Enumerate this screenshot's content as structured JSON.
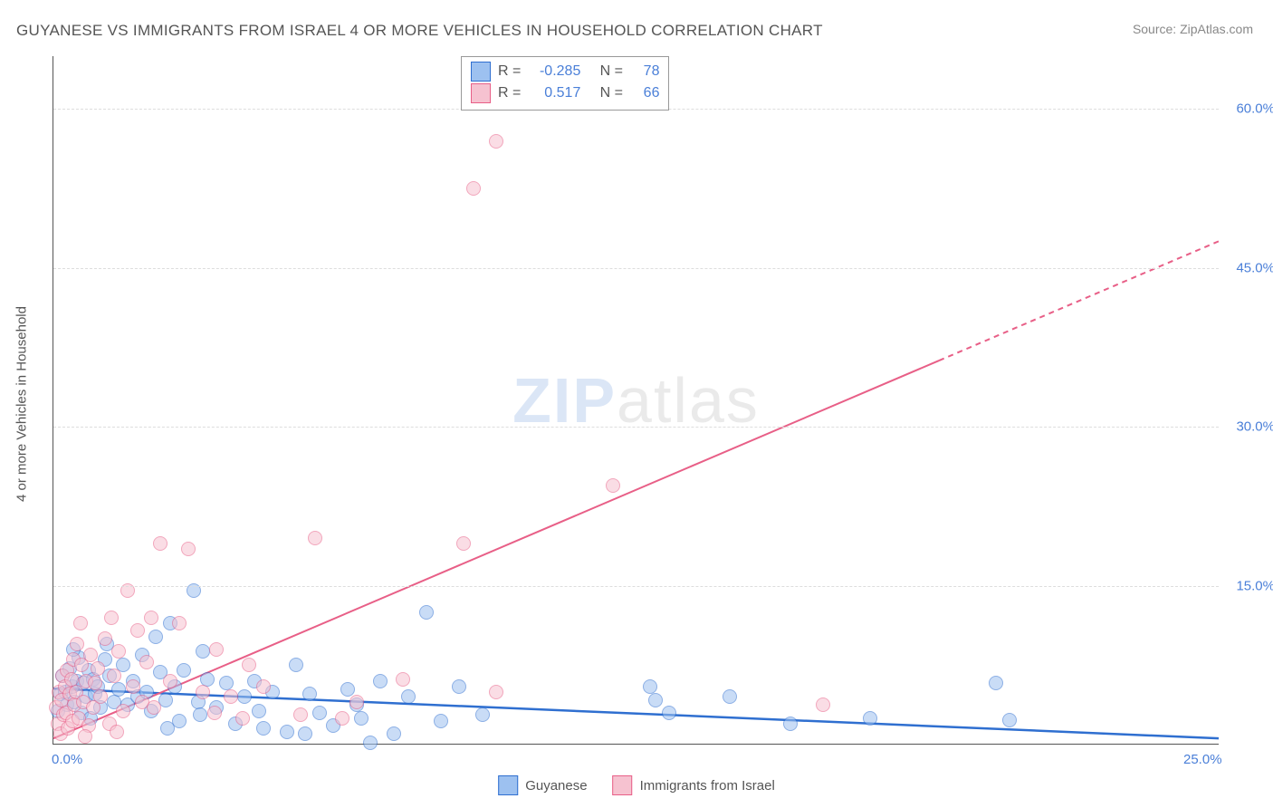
{
  "title": "GUYANESE VS IMMIGRANTS FROM ISRAEL 4 OR MORE VEHICLES IN HOUSEHOLD CORRELATION CHART",
  "source": "Source: ZipAtlas.com",
  "watermark_zip": "ZIP",
  "watermark_atlas": "atlas",
  "y_axis_title": "4 or more Vehicles in Household",
  "chart": {
    "type": "scatter",
    "xlim": [
      0,
      25
    ],
    "ylim": [
      0,
      65
    ],
    "x_ticks": [
      {
        "v": 0,
        "label": "0.0%"
      },
      {
        "v": 25,
        "label": "25.0%"
      }
    ],
    "y_ticks": [
      {
        "v": 15,
        "label": "15.0%"
      },
      {
        "v": 30,
        "label": "30.0%"
      },
      {
        "v": 45,
        "label": "45.0%"
      },
      {
        "v": 60,
        "label": "60.0%"
      }
    ],
    "grid_color": "#dddddd",
    "axis_color": "#555555",
    "marker_radius": 8,
    "marker_opacity": 0.55,
    "colors": {
      "blue_fill": "#9dc1f0",
      "blue_stroke": "#2f6fd0",
      "pink_fill": "#f6c2d0",
      "pink_stroke": "#e85f87"
    },
    "series": [
      {
        "name": "Guyanese",
        "color_key": "blue",
        "R": "-0.285",
        "N": "78",
        "trend": {
          "x1": 0,
          "y1": 5.2,
          "x2": 25,
          "y2": 0.5,
          "stroke": "#2f6fd0",
          "width": 2.5,
          "dash_after_x": 25
        },
        "points": [
          [
            0.1,
            3.2
          ],
          [
            0.15,
            4.8
          ],
          [
            0.2,
            6.5
          ],
          [
            0.25,
            5.0
          ],
          [
            0.3,
            3.8
          ],
          [
            0.35,
            7.2
          ],
          [
            0.4,
            5.5
          ],
          [
            0.45,
            4.0
          ],
          [
            0.5,
            6.0
          ],
          [
            0.55,
            8.2
          ],
          [
            0.6,
            3.0
          ],
          [
            0.65,
            5.8
          ],
          [
            0.7,
            4.5
          ],
          [
            0.75,
            7.0
          ],
          [
            0.8,
            2.5
          ],
          [
            0.85,
            6.2
          ],
          [
            0.9,
            4.8
          ],
          [
            0.95,
            5.5
          ],
          [
            1.0,
            3.5
          ],
          [
            1.1,
            8.0
          ],
          [
            1.2,
            6.5
          ],
          [
            1.3,
            4.0
          ],
          [
            1.4,
            5.2
          ],
          [
            1.5,
            7.5
          ],
          [
            1.6,
            3.8
          ],
          [
            1.7,
            6.0
          ],
          [
            1.8,
            4.5
          ],
          [
            1.9,
            8.5
          ],
          [
            2.0,
            5.0
          ],
          [
            2.1,
            3.2
          ],
          [
            2.2,
            10.2
          ],
          [
            2.3,
            6.8
          ],
          [
            2.4,
            4.2
          ],
          [
            2.5,
            11.5
          ],
          [
            2.6,
            5.5
          ],
          [
            2.8,
            7.0
          ],
          [
            3.0,
            14.5
          ],
          [
            3.1,
            4.0
          ],
          [
            3.3,
            6.2
          ],
          [
            3.5,
            3.5
          ],
          [
            3.7,
            5.8
          ],
          [
            3.9,
            2.0
          ],
          [
            4.1,
            4.5
          ],
          [
            4.3,
            6.0
          ],
          [
            4.5,
            1.5
          ],
          [
            4.7,
            5.0
          ],
          [
            5.0,
            1.2
          ],
          [
            5.2,
            7.5
          ],
          [
            5.5,
            4.8
          ],
          [
            5.7,
            3.0
          ],
          [
            6.0,
            1.8
          ],
          [
            6.3,
            5.2
          ],
          [
            6.6,
            2.5
          ],
          [
            7.0,
            6.0
          ],
          [
            7.3,
            1.0
          ],
          [
            7.6,
            4.5
          ],
          [
            8.0,
            12.5
          ],
          [
            8.3,
            2.2
          ],
          [
            8.7,
            5.5
          ],
          [
            9.2,
            2.8
          ],
          [
            12.8,
            5.5
          ],
          [
            12.9,
            4.2
          ],
          [
            13.2,
            3.0
          ],
          [
            14.5,
            4.5
          ],
          [
            15.8,
            2.0
          ],
          [
            17.5,
            2.5
          ],
          [
            20.2,
            5.8
          ],
          [
            20.5,
            2.3
          ],
          [
            6.5,
            3.8
          ],
          [
            4.4,
            3.2
          ],
          [
            5.4,
            1.0
          ],
          [
            6.8,
            0.2
          ],
          [
            3.2,
            8.8
          ],
          [
            2.7,
            2.2
          ],
          [
            1.15,
            9.5
          ],
          [
            0.42,
            9.0
          ],
          [
            2.45,
            1.5
          ],
          [
            3.15,
            2.8
          ]
        ]
      },
      {
        "name": "Immigrants from Israel",
        "color_key": "pink",
        "R": "0.517",
        "N": "66",
        "trend": {
          "x1": 0,
          "y1": 0.5,
          "x2": 25,
          "y2": 47.5,
          "stroke": "#e85f87",
          "width": 2,
          "dash_after_x": 19
        },
        "points": [
          [
            0.05,
            3.5
          ],
          [
            0.1,
            2.0
          ],
          [
            0.12,
            5.0
          ],
          [
            0.15,
            1.0
          ],
          [
            0.18,
            4.2
          ],
          [
            0.2,
            6.5
          ],
          [
            0.22,
            2.8
          ],
          [
            0.25,
            5.5
          ],
          [
            0.28,
            3.0
          ],
          [
            0.3,
            7.0
          ],
          [
            0.32,
            1.5
          ],
          [
            0.35,
            4.8
          ],
          [
            0.38,
            6.2
          ],
          [
            0.4,
            2.2
          ],
          [
            0.42,
            8.0
          ],
          [
            0.45,
            3.8
          ],
          [
            0.48,
            5.0
          ],
          [
            0.5,
            9.5
          ],
          [
            0.55,
            2.5
          ],
          [
            0.6,
            7.5
          ],
          [
            0.65,
            4.0
          ],
          [
            0.7,
            6.0
          ],
          [
            0.75,
            1.8
          ],
          [
            0.8,
            8.5
          ],
          [
            0.85,
            3.5
          ],
          [
            0.9,
            5.8
          ],
          [
            0.95,
            7.2
          ],
          [
            1.0,
            4.5
          ],
          [
            1.1,
            10.0
          ],
          [
            1.2,
            2.0
          ],
          [
            1.3,
            6.5
          ],
          [
            1.4,
            8.8
          ],
          [
            1.5,
            3.2
          ],
          [
            1.6,
            14.5
          ],
          [
            1.7,
            5.5
          ],
          [
            1.8,
            10.8
          ],
          [
            1.9,
            4.0
          ],
          [
            2.0,
            7.8
          ],
          [
            2.1,
            12.0
          ],
          [
            2.3,
            19.0
          ],
          [
            2.5,
            6.0
          ],
          [
            2.7,
            11.5
          ],
          [
            2.9,
            18.5
          ],
          [
            3.2,
            5.0
          ],
          [
            3.5,
            9.0
          ],
          [
            3.8,
            4.5
          ],
          [
            4.2,
            7.5
          ],
          [
            4.5,
            5.5
          ],
          [
            5.3,
            2.8
          ],
          [
            5.6,
            19.5
          ],
          [
            6.2,
            2.5
          ],
          [
            6.5,
            4.0
          ],
          [
            7.5,
            6.2
          ],
          [
            8.8,
            19.0
          ],
          [
            9.0,
            52.5
          ],
          [
            9.5,
            57.0
          ],
          [
            9.5,
            5.0
          ],
          [
            12.0,
            24.5
          ],
          [
            16.5,
            3.8
          ],
          [
            1.25,
            12.0
          ],
          [
            0.58,
            11.5
          ],
          [
            2.15,
            3.5
          ],
          [
            3.45,
            3.0
          ],
          [
            4.05,
            2.5
          ],
          [
            1.35,
            1.2
          ],
          [
            0.68,
            0.8
          ]
        ]
      }
    ]
  }
}
